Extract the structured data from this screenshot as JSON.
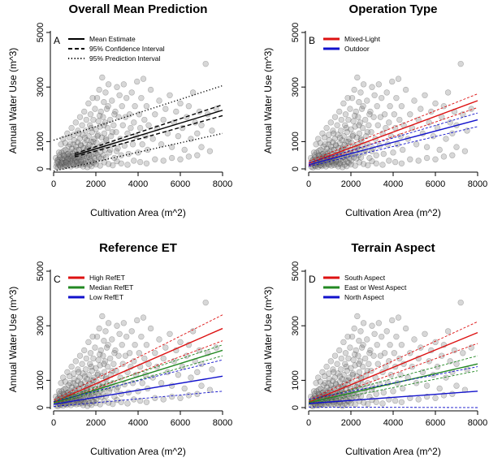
{
  "chart_data": [
    {
      "panel": "A",
      "type": "scatter",
      "title": "Overall Mean Prediction",
      "xlabel": "Cultivation Area (m^2)",
      "ylabel": "Annual Water Use (m^3)",
      "xlim": [
        0,
        8000
      ],
      "ylim": [
        0,
        5000
      ],
      "xticks": [
        0,
        2000,
        4000,
        6000,
        8000
      ],
      "yticks": [
        0,
        1000,
        3000,
        5000
      ],
      "legend_position": "top-left",
      "series": [
        {
          "name": "Mean Estimate",
          "color": "#000000",
          "style": "solid",
          "x": [
            1000,
            8000
          ],
          "y": [
            500,
            2150
          ]
        },
        {
          "name": "95% Confidence Interval",
          "color": "#000000",
          "style": "dashed",
          "x": [
            1000,
            8000
          ],
          "y": [
            560,
            2350
          ],
          "y2": [
            440,
            1950
          ]
        },
        {
          "name": "95% Prediction Interval",
          "color": "#000000",
          "style": "dotted",
          "x": [
            0,
            8000
          ],
          "y": [
            1050,
            3050
          ],
          "y2": [
            -80,
            1300
          ]
        }
      ]
    },
    {
      "panel": "B",
      "type": "scatter",
      "title": "Operation Type",
      "xlabel": "Cultivation Area (m^2)",
      "ylabel": "Annual Water Use (m^3)",
      "xlim": [
        0,
        8000
      ],
      "ylim": [
        0,
        5000
      ],
      "xticks": [
        0,
        2000,
        4000,
        6000,
        8000
      ],
      "yticks": [
        0,
        1000,
        3000,
        5000
      ],
      "legend_position": "top-left",
      "series": [
        {
          "name": "Mixed-Light",
          "color": "#dd1111",
          "style": "solid",
          "x": [
            0,
            8000
          ],
          "y": [
            200,
            2500
          ],
          "ci_hi": [
            280,
            2750
          ],
          "ci_lo": [
            120,
            2250
          ]
        },
        {
          "name": "Outdoor",
          "color": "#1111cc",
          "style": "solid",
          "x": [
            0,
            8000
          ],
          "y": [
            150,
            1800
          ],
          "ci_hi": [
            220,
            2050
          ],
          "ci_lo": [
            90,
            1550
          ]
        }
      ]
    },
    {
      "panel": "C",
      "type": "scatter",
      "title": "Reference ET",
      "xlabel": "Cultivation Area (m^2)",
      "ylabel": "Annual Water Use (m^3)",
      "xlim": [
        0,
        8000
      ],
      "ylim": [
        0,
        5000
      ],
      "xticks": [
        0,
        2000,
        4000,
        6000,
        8000
      ],
      "yticks": [
        0,
        1000,
        3000,
        5000
      ],
      "legend_position": "top-left",
      "series": [
        {
          "name": "High RefET",
          "color": "#dd1111",
          "style": "solid",
          "x": [
            0,
            8000
          ],
          "y": [
            200,
            2900
          ],
          "ci_hi": [
            280,
            3400
          ],
          "ci_lo": [
            120,
            2450
          ]
        },
        {
          "name": "Median RefET",
          "color": "#228822",
          "style": "solid",
          "x": [
            0,
            8000
          ],
          "y": [
            170,
            2100
          ],
          "ci_hi": [
            230,
            2300
          ],
          "ci_lo": [
            120,
            1900
          ]
        },
        {
          "name": "Low RefET",
          "color": "#1111cc",
          "style": "solid",
          "x": [
            0,
            8000
          ],
          "y": [
            120,
            1150
          ],
          "ci_hi": [
            220,
            1750
          ],
          "ci_lo": [
            40,
            600
          ]
        }
      ]
    },
    {
      "panel": "D",
      "type": "scatter",
      "title": "Terrain Aspect",
      "xlabel": "Cultivation Area (m^2)",
      "ylabel": "Annual Water Use (m^3)",
      "xlim": [
        0,
        8000
      ],
      "ylim": [
        0,
        5000
      ],
      "xticks": [
        0,
        2000,
        4000,
        6000,
        8000
      ],
      "yticks": [
        0,
        1000,
        3000,
        5000
      ],
      "legend_position": "top-left",
      "series": [
        {
          "name": "South Aspect",
          "color": "#dd1111",
          "style": "solid",
          "x": [
            0,
            8000
          ],
          "y": [
            200,
            2750
          ],
          "ci_hi": [
            280,
            3150
          ],
          "ci_lo": [
            120,
            2350
          ]
        },
        {
          "name": "East or West Aspect",
          "color": "#228822",
          "style": "solid",
          "x": [
            0,
            8000
          ],
          "y": [
            180,
            1600
          ],
          "ci_hi": [
            240,
            1900
          ],
          "ci_lo": [
            120,
            1350
          ]
        },
        {
          "name": "North Aspect",
          "color": "#1111cc",
          "style": "solid",
          "x": [
            0,
            8000
          ],
          "y": [
            150,
            600
          ],
          "ci_hi": [
            300,
            1500
          ],
          "ci_lo": [
            20,
            0
          ]
        }
      ]
    }
  ],
  "scatter_points": [
    [
      120,
      80
    ],
    [
      150,
      200
    ],
    [
      200,
      50
    ],
    [
      230,
      350
    ],
    [
      260,
      150
    ],
    [
      300,
      420
    ],
    [
      320,
      90
    ],
    [
      350,
      260
    ],
    [
      380,
      600
    ],
    [
      400,
      180
    ],
    [
      420,
      320
    ],
    [
      450,
      70
    ],
    [
      470,
      500
    ],
    [
      500,
      220
    ],
    [
      520,
      380
    ],
    [
      540,
      130
    ],
    [
      560,
      700
    ],
    [
      580,
      260
    ],
    [
      600,
      450
    ],
    [
      620,
      100
    ],
    [
      640,
      320
    ],
    [
      660,
      540
    ],
    [
      680,
      200
    ],
    [
      700,
      820
    ],
    [
      720,
      360
    ],
    [
      740,
      150
    ],
    [
      760,
      480
    ],
    [
      780,
      620
    ],
    [
      800,
      280
    ],
    [
      820,
      90
    ],
    [
      840,
      410
    ],
    [
      860,
      740
    ],
    [
      880,
      230
    ],
    [
      900,
      560
    ],
    [
      920,
      330
    ],
    [
      940,
      900
    ],
    [
      960,
      150
    ],
    [
      980,
      470
    ],
    [
      1000,
      650
    ],
    [
      1020,
      260
    ],
    [
      1040,
      380
    ],
    [
      1060,
      820
    ],
    [
      1080,
      120
    ],
    [
      1100,
      540
    ],
    [
      1120,
      300
    ],
    [
      1140,
      980
    ],
    [
      1160,
      420
    ],
    [
      1180,
      200
    ],
    [
      1200,
      700
    ],
    [
      1220,
      360
    ],
    [
      1240,
      1100
    ],
    [
      1260,
      520
    ],
    [
      1280,
      260
    ],
    [
      1300,
      850
    ],
    [
      1320,
      440
    ],
    [
      1340,
      160
    ],
    [
      1360,
      620
    ],
    [
      1380,
      1250
    ],
    [
      1400,
      330
    ],
    [
      1420,
      760
    ],
    [
      1440,
      480
    ],
    [
      1460,
      210
    ],
    [
      1480,
      940
    ],
    [
      1500,
      560
    ],
    [
      1520,
      1400
    ],
    [
      1540,
      300
    ],
    [
      1560,
      680
    ],
    [
      1580,
      1050
    ],
    [
      1600,
      420
    ],
    [
      1620,
      780
    ],
    [
      1640,
      250
    ],
    [
      1660,
      1200
    ],
    [
      1680,
      520
    ],
    [
      1700,
      880
    ],
    [
      1720,
      1600
    ],
    [
      1740,
      360
    ],
    [
      1760,
      700
    ],
    [
      1780,
      1000
    ],
    [
      1800,
      460
    ],
    [
      1820,
      1350
    ],
    [
      1840,
      240
    ],
    [
      1860,
      820
    ],
    [
      1880,
      1800
    ],
    [
      1900,
      560
    ],
    [
      1920,
      1100
    ],
    [
      1940,
      380
    ],
    [
      1960,
      2200
    ],
    [
      1980,
      700
    ],
    [
      2000,
      1450
    ],
    [
      2020,
      300
    ],
    [
      2040,
      950
    ],
    [
      2060,
      2600
    ],
    [
      2080,
      520
    ],
    [
      2100,
      1250
    ],
    [
      2120,
      1750
    ],
    [
      2140,
      420
    ],
    [
      2160,
      2900
    ],
    [
      2180,
      800
    ],
    [
      2200,
      1550
    ],
    [
      2220,
      620
    ],
    [
      2240,
      2100
    ],
    [
      2260,
      380
    ],
    [
      2280,
      1150
    ],
    [
      2300,
      3350
    ],
    [
      2320,
      900
    ],
    [
      2340,
      1900
    ],
    [
      2360,
      500
    ],
    [
      2380,
      2450
    ],
    [
      2400,
      1300
    ],
    [
      2420,
      700
    ],
    [
      2440,
      1700
    ],
    [
      2460,
      2800
    ],
    [
      2480,
      420
    ],
    [
      2500,
      1050
    ],
    [
      2520,
      2200
    ],
    [
      2540,
      850
    ],
    [
      2560,
      1500
    ],
    [
      2600,
      3100
    ],
    [
      2640,
      600
    ],
    [
      2680,
      1800
    ],
    [
      2720,
      1200
    ],
    [
      2760,
      2500
    ],
    [
      2800,
      900
    ],
    [
      2840,
      1600
    ],
    [
      2880,
      400
    ],
    [
      2920,
      2100
    ],
    [
      2960,
      1350
    ],
    [
      3000,
      3000
    ],
    [
      3040,
      750
    ],
    [
      3080,
      1900
    ],
    [
      3120,
      2700
    ],
    [
      3160,
      1100
    ],
    [
      3200,
      500
    ],
    [
      3240,
      2300
    ],
    [
      3280,
      1600
    ],
    [
      3320,
      3100
    ],
    [
      3360,
      850
    ],
    [
      3400,
      1900
    ],
    [
      3450,
      2600
    ],
    [
      3500,
      1300
    ],
    [
      3550,
      550
    ],
    [
      3600,
      2000
    ],
    [
      3650,
      1500
    ],
    [
      3700,
      2800
    ],
    [
      3750,
      900
    ],
    [
      3800,
      1700
    ],
    [
      3850,
      2300
    ],
    [
      3900,
      1200
    ],
    [
      3950,
      3200
    ],
    [
      4000,
      600
    ],
    [
      4050,
      2000
    ],
    [
      4100,
      1500
    ],
    [
      4150,
      2600
    ],
    [
      4200,
      900
    ],
    [
      4250,
      3300
    ],
    [
      4300,
      1800
    ],
    [
      4350,
      1200
    ],
    [
      4400,
      2300
    ],
    [
      4450,
      700
    ],
    [
      4500,
      1600
    ],
    [
      4600,
      2900
    ],
    [
      4700,
      1100
    ],
    [
      4800,
      2000
    ],
    [
      4900,
      1500
    ],
    [
      5000,
      2500
    ],
    [
      5100,
      900
    ],
    [
      5200,
      1800
    ],
    [
      5300,
      2200
    ],
    [
      5400,
      1300
    ],
    [
      5500,
      2700
    ],
    [
      5600,
      800
    ],
    [
      5700,
      1700
    ],
    [
      5800,
      2100
    ],
    [
      5900,
      1200
    ],
    [
      6000,
      2400
    ],
    [
      6100,
      1500
    ],
    [
      6200,
      700
    ],
    [
      6300,
      1900
    ],
    [
      6400,
      2300
    ],
    [
      6500,
      1100
    ],
    [
      6600,
      2800
    ],
    [
      6700,
      1700
    ],
    [
      6800,
      1300
    ],
    [
      6900,
      2100
    ],
    [
      7000,
      1600
    ],
    [
      7200,
      3850
    ],
    [
      7300,
      2000
    ],
    [
      7500,
      1400
    ],
    [
      7700,
      2200
    ],
    [
      250,
      600
    ],
    [
      350,
      900
    ],
    [
      450,
      1100
    ],
    [
      550,
      950
    ],
    [
      650,
      1300
    ],
    [
      750,
      1150
    ],
    [
      850,
      1500
    ],
    [
      950,
      1250
    ],
    [
      1050,
      1700
    ],
    [
      1150,
      1400
    ],
    [
      1250,
      1900
    ],
    [
      1350,
      1600
    ],
    [
      1450,
      2100
    ],
    [
      1550,
      1800
    ],
    [
      1650,
      2400
    ],
    [
      1750,
      2000
    ],
    [
      1850,
      2600
    ],
    [
      200,
      250
    ],
    [
      300,
      120
    ],
    [
      400,
      380
    ],
    [
      500,
      480
    ],
    [
      600,
      240
    ],
    [
      700,
      560
    ],
    [
      800,
      350
    ],
    [
      900,
      180
    ],
    [
      1000,
      400
    ],
    [
      1100,
      250
    ],
    [
      1200,
      140
    ],
    [
      1300,
      300
    ],
    [
      1400,
      90
    ],
    [
      1500,
      180
    ],
    [
      1600,
      60
    ],
    [
      1700,
      150
    ],
    [
      1800,
      100
    ],
    [
      1900,
      220
    ],
    [
      2000,
      160
    ],
    [
      2200,
      120
    ],
    [
      2400,
      240
    ],
    [
      2600,
      180
    ],
    [
      2800,
      130
    ],
    [
      3000,
      280
    ],
    [
      3200,
      200
    ],
    [
      3500,
      150
    ],
    [
      3800,
      300
    ],
    [
      4100,
      250
    ],
    [
      4400,
      200
    ],
    [
      4800,
      350
    ],
    [
      5200,
      300
    ],
    [
      5600,
      400
    ],
    [
      6000,
      350
    ],
    [
      6400,
      450
    ],
    [
      6800,
      500
    ],
    [
      7000,
      800
    ],
    [
      7400,
      650
    ],
    [
      100,
      400
    ],
    [
      180,
      300
    ],
    [
      280,
      500
    ],
    [
      380,
      220
    ],
    [
      480,
      660
    ],
    [
      580,
      140
    ],
    [
      680,
      380
    ],
    [
      780,
      900
    ],
    [
      880,
      460
    ],
    [
      980,
      1050
    ],
    [
      1080,
      700
    ],
    [
      1180,
      1300
    ],
    [
      1280,
      880
    ],
    [
      1380,
      520
    ],
    [
      1480,
      1150
    ],
    [
      1580,
      720
    ],
    [
      1680,
      430
    ],
    [
      1780,
      1500
    ],
    [
      1880,
      1000
    ],
    [
      1980,
      580
    ],
    [
      2080,
      1200
    ],
    [
      2180,
      1950
    ],
    [
      2280,
      760
    ],
    [
      2380,
      1600
    ],
    [
      2480,
      1100
    ],
    [
      2580,
      2300
    ],
    [
      2680,
      700
    ],
    [
      2780,
      1350
    ],
    [
      2880,
      2000
    ],
    [
      2980,
      650
    ]
  ]
}
